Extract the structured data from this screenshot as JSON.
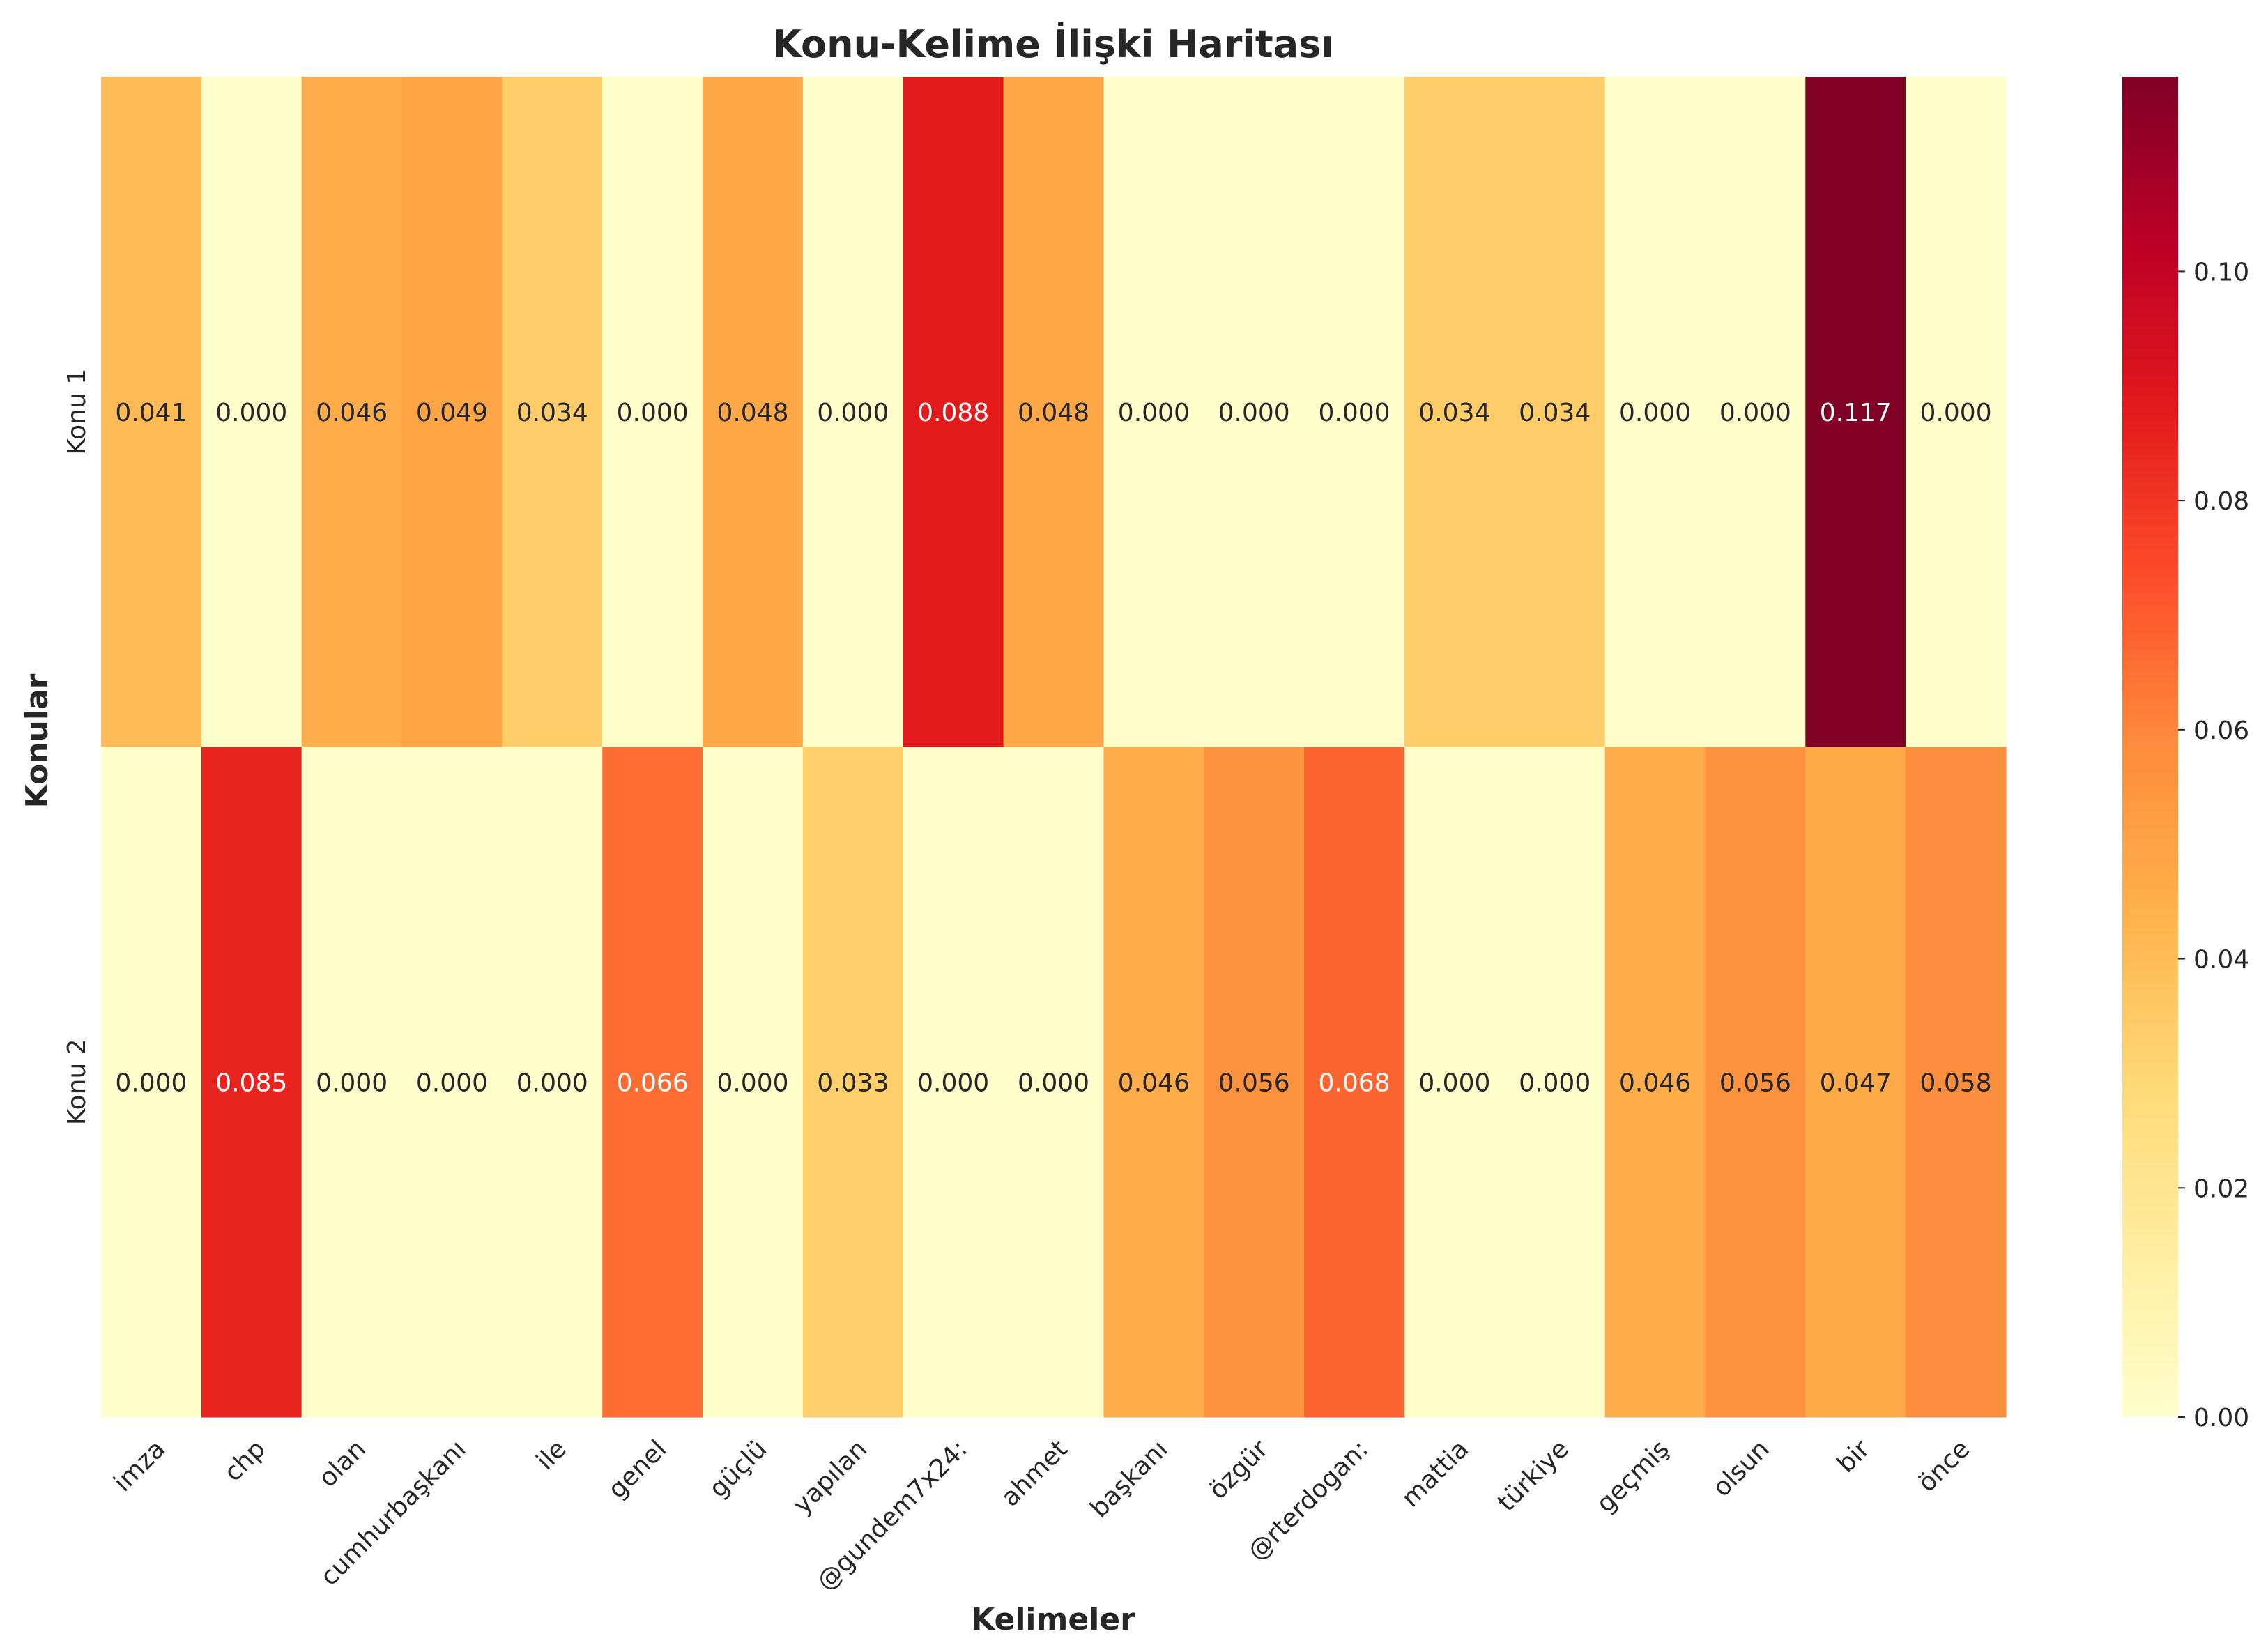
{
  "chart_data": {
    "type": "heatmap",
    "title": "Konu-Kelime İlişki Haritası",
    "xlabel": "Kelimeler",
    "ylabel": "Konular",
    "x_categories": [
      "imza",
      "chp",
      "olan",
      "cumhurbaşkanı",
      "ile",
      "genel",
      "güçlü",
      "yapılan",
      "@gundem7x24:",
      "ahmet",
      "başkanı",
      "özgür",
      "@rterdogan:",
      "mattia",
      "türkiye",
      "geçmiş",
      "olsun",
      "bir",
      "önce"
    ],
    "y_categories": [
      "Konu 1",
      "Konu 2"
    ],
    "values": [
      [
        0.041,
        0.0,
        0.046,
        0.049,
        0.034,
        0.0,
        0.048,
        0.0,
        0.088,
        0.048,
        0.0,
        0.0,
        0.0,
        0.034,
        0.034,
        0.0,
        0.0,
        0.117,
        0.0
      ],
      [
        0.0,
        0.085,
        0.0,
        0.0,
        0.0,
        0.066,
        0.0,
        0.033,
        0.0,
        0.0,
        0.046,
        0.056,
        0.068,
        0.0,
        0.0,
        0.046,
        0.056,
        0.047,
        0.058
      ]
    ],
    "colormap": "YlOrRd",
    "colorbar": {
      "range": [
        0.0,
        0.117
      ],
      "ticks": [
        0.0,
        0.02,
        0.04,
        0.06,
        0.08,
        0.1
      ],
      "tick_labels": [
        "0.00",
        "0.02",
        "0.04",
        "0.06",
        "0.08",
        "0.10"
      ]
    },
    "annotations_format": "0.000",
    "grid": false
  }
}
